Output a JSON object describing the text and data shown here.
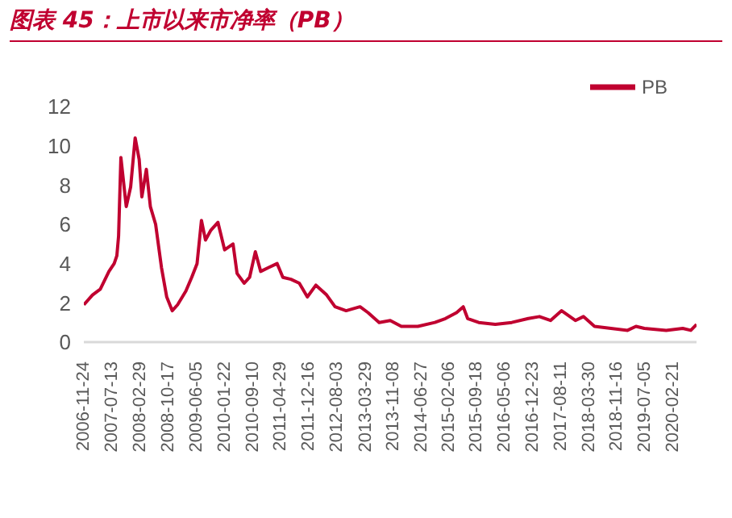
{
  "chart_data": {
    "type": "line",
    "title": "图表 45：上市以来市净率（PB）",
    "x": [
      "2006-11-24",
      "2007-02-03",
      "2007-04-08",
      "2007-06-18",
      "2007-07-31",
      "2007-08-22",
      "2007-09-05",
      "2007-09-24",
      "2007-11-07",
      "2007-12-13",
      "2008-01-19",
      "2008-02-21",
      "2008-03-14",
      "2008-04-20",
      "2008-05-23",
      "2008-07-05",
      "2008-08-22",
      "2008-10-04",
      "2008-11-18",
      "2009-01-01",
      "2009-03-10",
      "2009-04-27",
      "2009-06-10",
      "2009-07-16",
      "2009-08-18",
      "2009-10-01",
      "2009-11-28",
      "2010-01-22",
      "2010-04-01",
      "2010-05-04",
      "2010-07-02",
      "2010-08-15",
      "2010-10-01",
      "2010-11-14",
      "2011-01-19",
      "2011-03-29",
      "2011-05-15",
      "2011-07-20",
      "2011-09-27",
      "2011-12-02",
      "2012-02-10",
      "2012-05-08",
      "2012-07-16",
      "2012-10-15",
      "2013-02-06",
      "2013-04-13",
      "2013-07-13",
      "2013-10-12",
      "2014-01-11",
      "2014-05-27",
      "2014-10-13",
      "2015-01-08",
      "2015-04-09",
      "2015-06-03",
      "2015-07-09",
      "2015-10-08",
      "2016-02-21",
      "2016-07-05",
      "2016-11-18",
      "2017-02-17",
      "2017-05-19",
      "2017-08-18",
      "2017-12-09",
      "2018-02-13",
      "2018-05-15",
      "2018-09-27",
      "2019-02-10",
      "2019-04-20",
      "2019-06-28",
      "2019-12-24",
      "2020-05-08",
      "2020-07-13",
      "2020-08-29"
    ],
    "series": [
      {
        "name": "PB",
        "color": "#c00030",
        "values": [
          1.9,
          2.4,
          2.7,
          3.6,
          4.0,
          4.4,
          5.4,
          9.4,
          6.9,
          7.9,
          10.4,
          9.3,
          7.4,
          8.8,
          6.9,
          6.0,
          3.8,
          2.3,
          1.6,
          1.9,
          2.6,
          3.3,
          4.0,
          6.2,
          5.2,
          5.7,
          6.1,
          4.7,
          5.0,
          3.5,
          3.0,
          3.3,
          4.6,
          3.6,
          3.8,
          4.0,
          3.3,
          3.2,
          3.0,
          2.3,
          2.9,
          2.4,
          1.8,
          1.6,
          1.8,
          1.5,
          1.0,
          1.1,
          0.8,
          0.8,
          1.0,
          1.2,
          1.5,
          1.8,
          1.2,
          1.0,
          0.9,
          1.0,
          1.2,
          1.3,
          1.1,
          1.6,
          1.1,
          1.3,
          0.8,
          0.7,
          0.6,
          0.8,
          0.7,
          0.6,
          0.7,
          0.6,
          0.9
        ]
      }
    ],
    "xlim": [
      "2006-11-24",
      "2020-08-29"
    ],
    "xticks": [
      "2006-11-24",
      "2007-07-13",
      "2008-02-29",
      "2008-10-17",
      "2009-06-05",
      "2010-01-22",
      "2010-09-10",
      "2011-04-29",
      "2011-12-16",
      "2012-08-03",
      "2013-03-29",
      "2013-11-08",
      "2014-06-27",
      "2015-02-06",
      "2015-09-18",
      "2016-05-06",
      "2016-12-23",
      "2017-08-11",
      "2018-03-30",
      "2018-11-16",
      "2019-07-05",
      "2020-02-21"
    ],
    "ylim": [
      0,
      12
    ],
    "yticks": [
      0,
      2,
      4,
      6,
      8,
      10,
      12
    ],
    "grid": false,
    "legend": "top right",
    "marker": "none",
    "line_style": "solid"
  }
}
